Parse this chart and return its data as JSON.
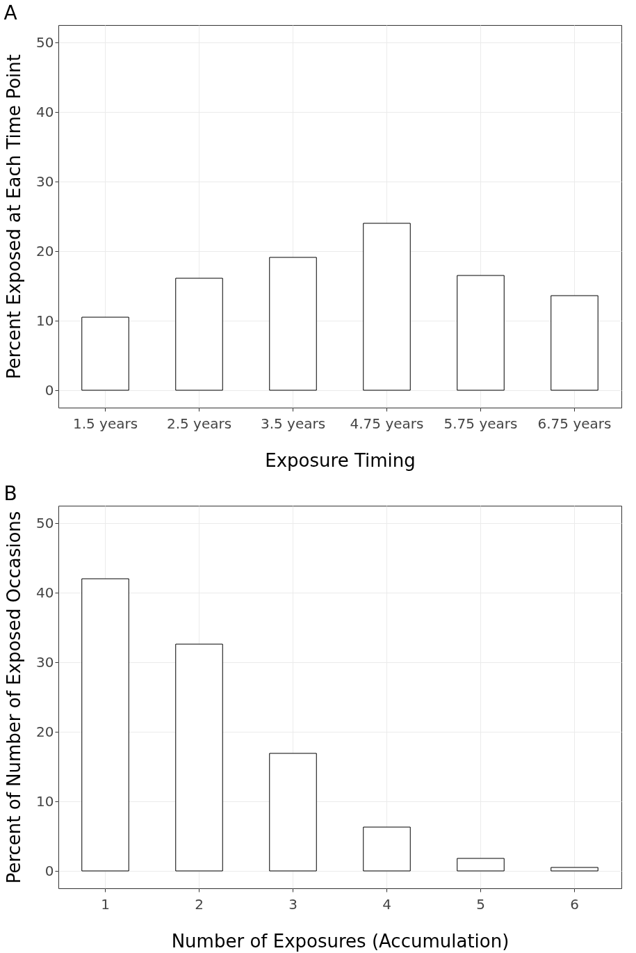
{
  "chart_data": [
    {
      "type": "bar",
      "title": "A",
      "xlabel": "Exposure Timing",
      "ylabel": "Percent Exposed at Each Time Point",
      "categories": [
        "1.5 years",
        "2.5 years",
        "3.5 years",
        "4.75 years",
        "5.75 years",
        "6.75 years"
      ],
      "values": [
        10.5,
        16.1,
        19.1,
        24.0,
        16.5,
        13.6
      ],
      "color": "#ffffff",
      "ylim": [
        -2.5,
        52.5
      ],
      "yticks": [
        0,
        10,
        20,
        30,
        40,
        50
      ],
      "grid": true
    },
    {
      "type": "bar",
      "title": "B",
      "xlabel": "Number of Exposures (Accumulation)",
      "ylabel": "Percent of Number of Exposed Occasions",
      "categories": [
        "1",
        "2",
        "3",
        "4",
        "5",
        "6"
      ],
      "values": [
        42.0,
        32.6,
        16.9,
        6.3,
        1.8,
        0.5
      ],
      "color": "#ffffff",
      "ylim": [
        -2.5,
        52.5
      ],
      "yticks": [
        0,
        10,
        20,
        30,
        40,
        50
      ],
      "grid": true
    }
  ]
}
